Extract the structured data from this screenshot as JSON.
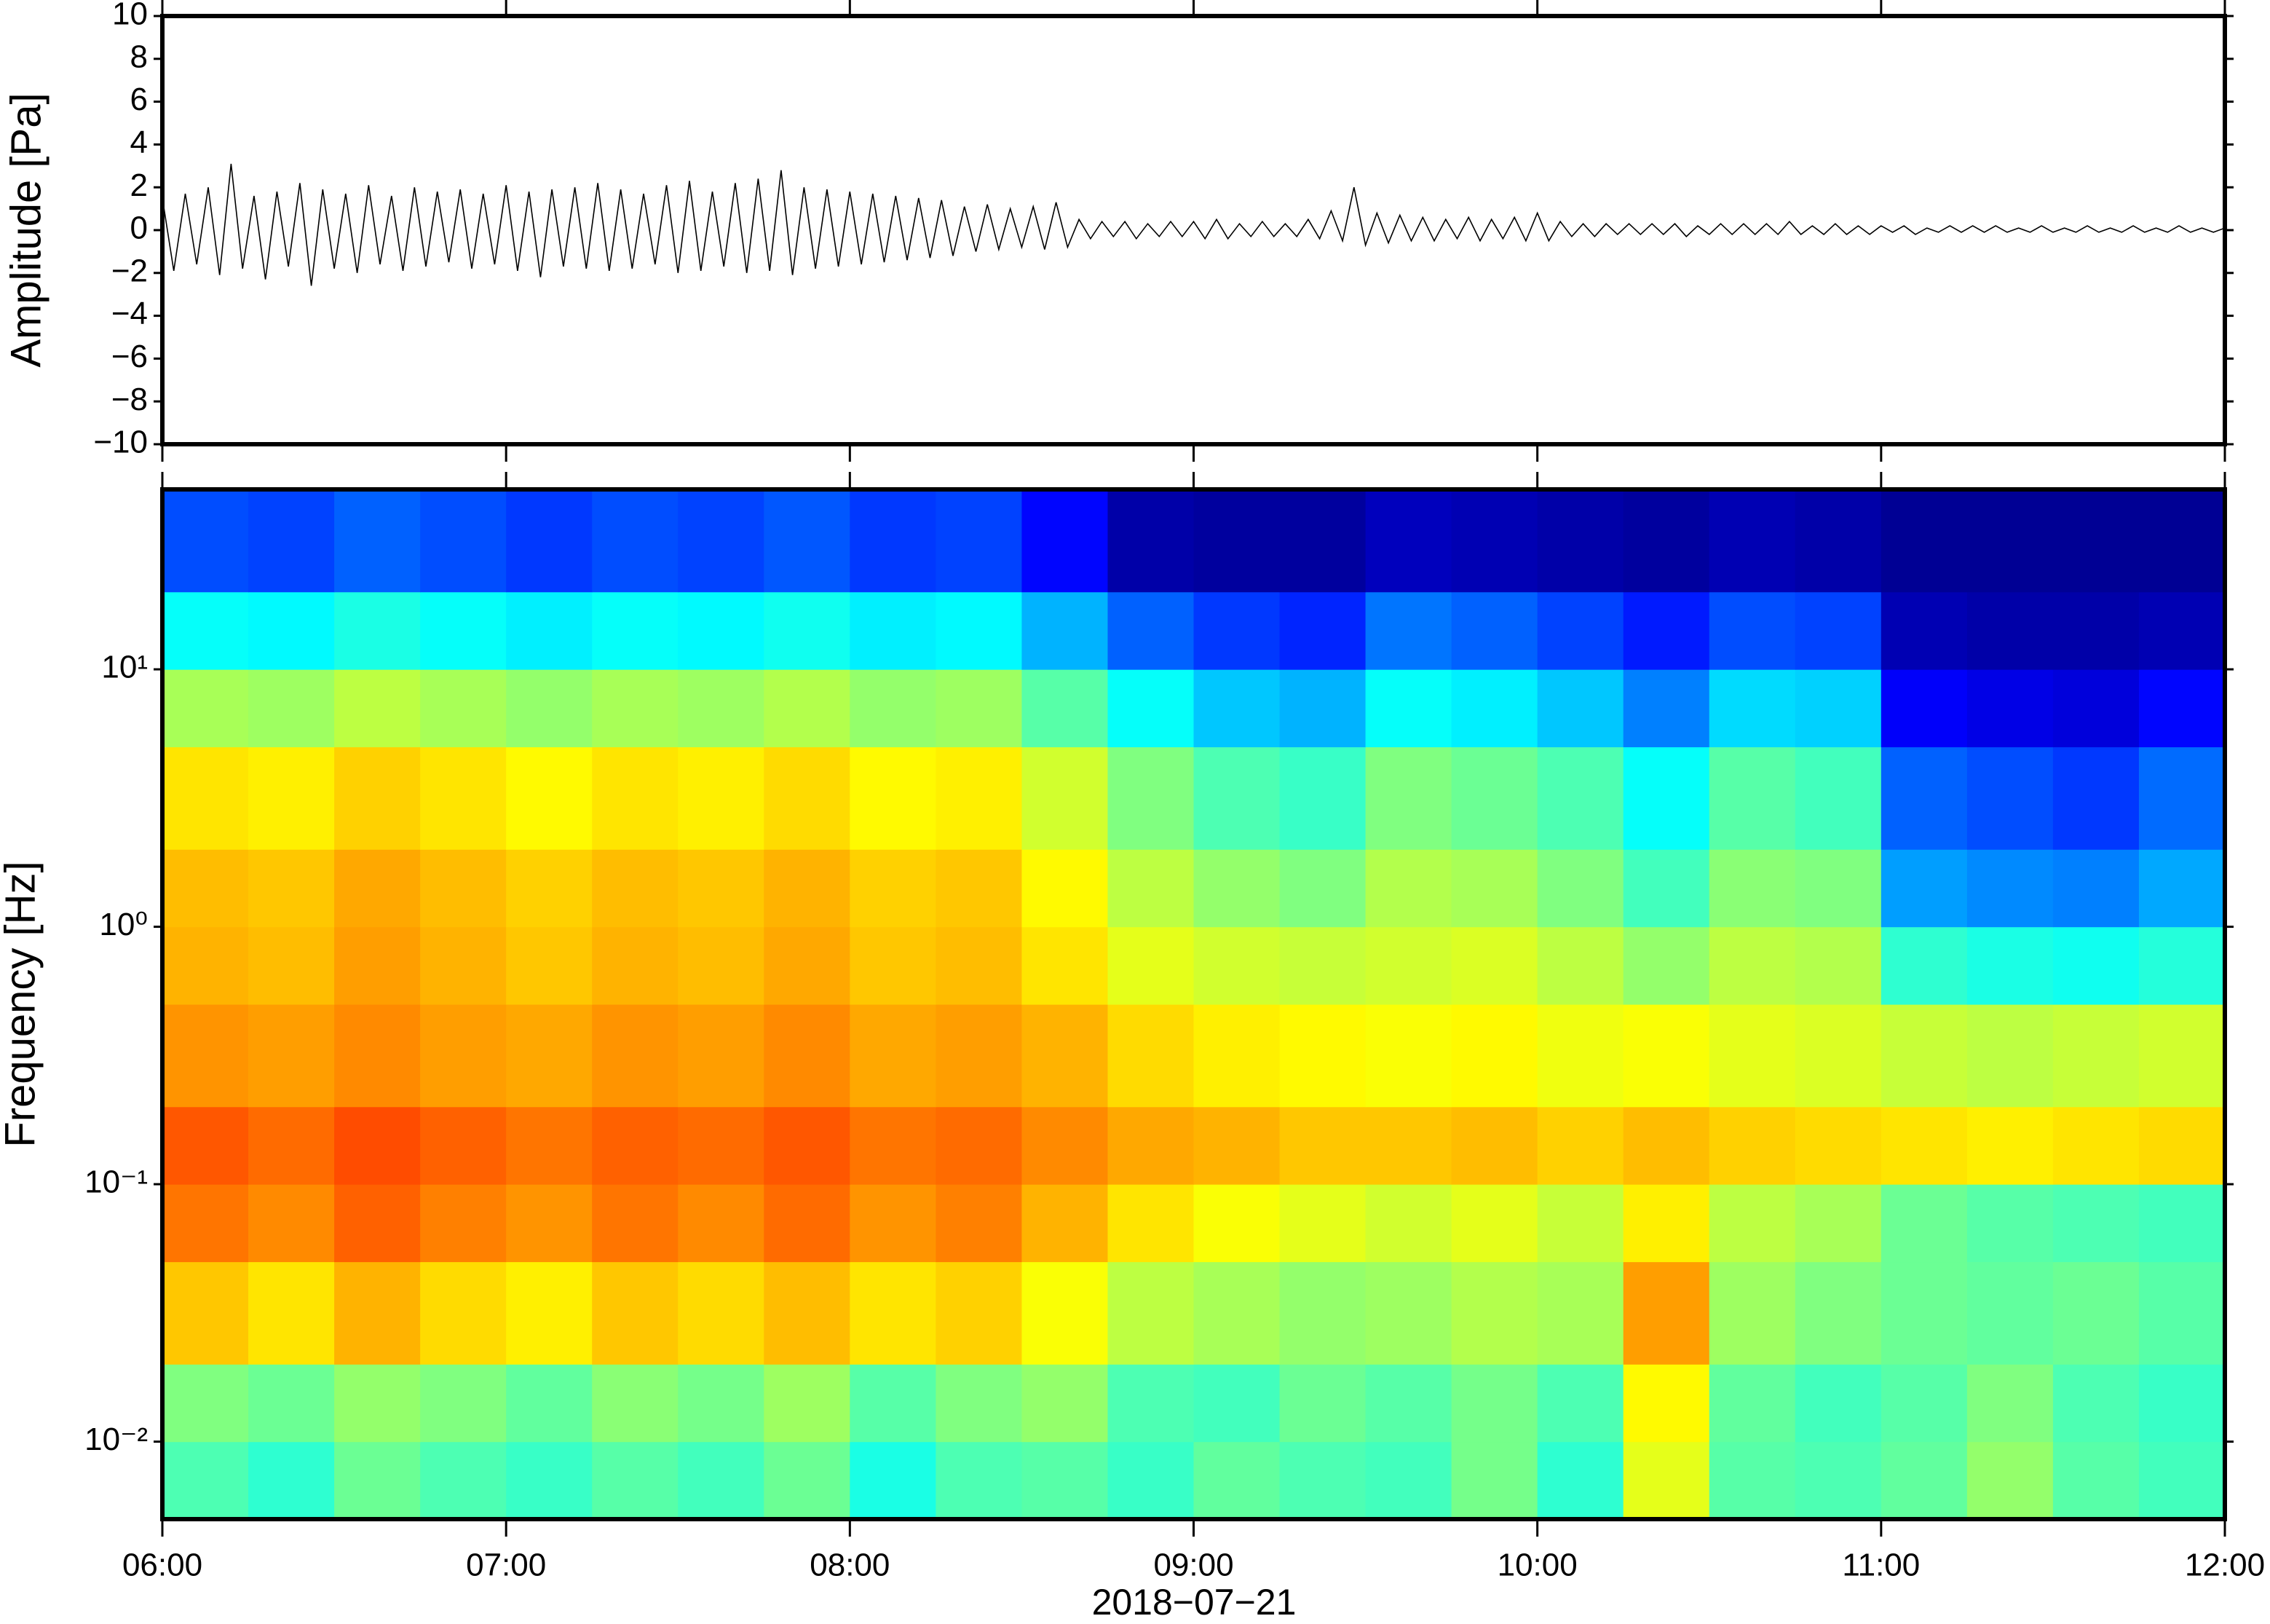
{
  "chart_data": [
    {
      "type": "line",
      "ylabel": "Amplitude [Pa]",
      "color": "#000000",
      "xlim": [
        "06:00",
        "12:00"
      ],
      "ylim": [
        -10,
        10
      ],
      "yticks": [
        10,
        8,
        6,
        4,
        2,
        0,
        {
          "value": -2,
          "label": "−2"
        },
        {
          "value": -4,
          "label": "−4"
        },
        {
          "value": -6,
          "label": "−6"
        },
        {
          "value": -8,
          "label": "−8"
        },
        {
          "value": -10,
          "label": "−10"
        }
      ],
      "x": [
        "06:00",
        "06:02",
        "06:04",
        "06:06",
        "06:08",
        "06:10",
        "06:12",
        "06:14",
        "06:16",
        "06:18",
        "06:20",
        "06:22",
        "06:24",
        "06:26",
        "06:28",
        "06:30",
        "06:32",
        "06:34",
        "06:36",
        "06:38",
        "06:40",
        "06:42",
        "06:44",
        "06:46",
        "06:48",
        "06:50",
        "06:52",
        "06:54",
        "06:56",
        "06:58",
        "07:00",
        "07:02",
        "07:04",
        "07:06",
        "07:08",
        "07:10",
        "07:12",
        "07:14",
        "07:16",
        "07:18",
        "07:20",
        "07:22",
        "07:24",
        "07:26",
        "07:28",
        "07:30",
        "07:32",
        "07:34",
        "07:36",
        "07:38",
        "07:40",
        "07:42",
        "07:44",
        "07:46",
        "07:48",
        "07:50",
        "07:52",
        "07:54",
        "07:56",
        "07:58",
        "08:00",
        "08:02",
        "08:04",
        "08:06",
        "08:08",
        "08:10",
        "08:12",
        "08:14",
        "08:16",
        "08:18",
        "08:20",
        "08:22",
        "08:24",
        "08:26",
        "08:28",
        "08:30",
        "08:32",
        "08:34",
        "08:36",
        "08:38",
        "08:40",
        "08:42",
        "08:44",
        "08:46",
        "08:48",
        "08:50",
        "08:52",
        "08:54",
        "08:56",
        "08:58",
        "09:00",
        "09:02",
        "09:04",
        "09:06",
        "09:08",
        "09:10",
        "09:12",
        "09:14",
        "09:16",
        "09:18",
        "09:20",
        "09:22",
        "09:24",
        "09:26",
        "09:28",
        "09:30",
        "09:32",
        "09:34",
        "09:36",
        "09:38",
        "09:40",
        "09:42",
        "09:44",
        "09:46",
        "09:48",
        "09:50",
        "09:52",
        "09:54",
        "09:56",
        "09:58",
        "10:00",
        "10:02",
        "10:04",
        "10:06",
        "10:08",
        "10:10",
        "10:12",
        "10:14",
        "10:16",
        "10:18",
        "10:20",
        "10:22",
        "10:24",
        "10:26",
        "10:28",
        "10:30",
        "10:32",
        "10:34",
        "10:36",
        "10:38",
        "10:40",
        "10:42",
        "10:44",
        "10:46",
        "10:48",
        "10:50",
        "10:52",
        "10:54",
        "10:56",
        "10:58",
        "11:00",
        "11:02",
        "11:04",
        "11:06",
        "11:08",
        "11:10",
        "11:12",
        "11:14",
        "11:16",
        "11:18",
        "11:20",
        "11:22",
        "11:24",
        "11:26",
        "11:28",
        "11:30",
        "11:32",
        "11:34",
        "11:36",
        "11:38",
        "11:40",
        "11:42",
        "11:44",
        "11:46",
        "11:48",
        "11:50",
        "11:52",
        "11:54",
        "11:56",
        "11:58",
        "12:00"
      ],
      "values": [
        1.5,
        -1.9,
        1.7,
        -1.6,
        2.0,
        -2.1,
        3.1,
        -1.8,
        1.6,
        -2.3,
        1.8,
        -1.7,
        2.2,
        -2.6,
        1.9,
        -1.8,
        1.7,
        -2.0,
        2.1,
        -1.6,
        1.6,
        -1.9,
        2.0,
        -1.7,
        1.8,
        -1.5,
        1.9,
        -1.8,
        1.7,
        -1.6,
        2.1,
        -1.9,
        1.8,
        -2.2,
        1.9,
        -1.7,
        2.0,
        -1.8,
        2.2,
        -1.9,
        1.9,
        -1.8,
        1.7,
        -1.6,
        2.1,
        -2.0,
        2.3,
        -1.9,
        1.8,
        -1.7,
        2.2,
        -2.0,
        2.4,
        -1.9,
        2.8,
        -2.1,
        2.0,
        -1.8,
        1.9,
        -1.7,
        1.8,
        -1.6,
        1.7,
        -1.5,
        1.6,
        -1.4,
        1.5,
        -1.3,
        1.4,
        -1.2,
        1.1,
        -1.0,
        1.2,
        -0.9,
        1.0,
        -0.8,
        1.1,
        -0.9,
        1.3,
        -0.8,
        0.5,
        -0.4,
        0.4,
        -0.3,
        0.4,
        -0.4,
        0.3,
        -0.3,
        0.4,
        -0.3,
        0.4,
        -0.4,
        0.5,
        -0.4,
        0.3,
        -0.3,
        0.4,
        -0.3,
        0.3,
        -0.3,
        0.5,
        -0.4,
        0.9,
        -0.5,
        2.0,
        -0.7,
        0.8,
        -0.6,
        0.7,
        -0.5,
        0.6,
        -0.5,
        0.5,
        -0.4,
        0.6,
        -0.5,
        0.5,
        -0.4,
        0.6,
        -0.5,
        0.8,
        -0.5,
        0.4,
        -0.3,
        0.3,
        -0.3,
        0.3,
        -0.2,
        0.3,
        -0.2,
        0.3,
        -0.2,
        0.3,
        -0.3,
        0.2,
        -0.2,
        0.3,
        -0.2,
        0.3,
        -0.2,
        0.3,
        -0.2,
        0.4,
        -0.2,
        0.2,
        -0.2,
        0.3,
        -0.2,
        0.2,
        -0.2,
        0.2,
        -0.1,
        0.2,
        -0.2,
        0.1,
        -0.1,
        0.2,
        -0.1,
        0.2,
        -0.1,
        0.2,
        -0.1,
        0.1,
        -0.1,
        0.2,
        -0.1,
        0.1,
        -0.1,
        0.2,
        -0.1,
        0.1,
        -0.1,
        0.2,
        -0.1,
        0.1,
        -0.1,
        0.2,
        -0.1,
        0.1,
        -0.1,
        0.1
      ]
    },
    {
      "type": "heatmap",
      "ylabel": "Frequency [Hz]",
      "xlabel": "2018−07−21",
      "xlim": [
        "06:00",
        "12:00"
      ],
      "ylim": [
        0.005,
        50
      ],
      "yscale": "log",
      "zlim": [
        0,
        10
      ],
      "xticks": [
        "06:00",
        "07:00",
        "08:00",
        "09:00",
        "10:00",
        "11:00",
        "12:00"
      ],
      "yticks": [
        {
          "value": 10,
          "label": "10¹"
        },
        {
          "value": 1,
          "label": "10⁰"
        },
        {
          "value": 0.1,
          "label": "10⁻¹"
        },
        {
          "value": 0.01,
          "label": "10⁻²"
        }
      ],
      "xbins": [
        "06:00",
        "06:15",
        "06:30",
        "06:45",
        "07:00",
        "07:15",
        "07:30",
        "07:45",
        "08:00",
        "08:15",
        "08:30",
        "08:45",
        "09:00",
        "09:15",
        "09:30",
        "09:45",
        "10:00",
        "10:15",
        "10:30",
        "10:45",
        "11:00",
        "11:15",
        "11:30",
        "11:45",
        "12:00"
      ],
      "ybins": [
        0.005,
        0.01,
        0.02,
        0.05,
        0.1,
        0.2,
        0.5,
        1,
        2,
        5,
        10,
        20,
        50
      ],
      "z": [
        [
          4.5,
          4.2,
          4.8,
          4.5,
          4.3,
          4.6,
          4.4,
          4.8,
          4.0,
          4.5,
          4.6,
          4.3,
          4.7,
          4.5,
          4.4,
          4.9,
          4.2,
          6.0,
          4.6,
          4.5,
          4.7,
          5.2,
          4.6,
          4.4
        ],
        [
          5.0,
          4.8,
          5.2,
          5.0,
          4.7,
          5.1,
          4.9,
          5.3,
          4.6,
          5.0,
          5.2,
          4.5,
          4.4,
          4.8,
          4.6,
          4.9,
          4.5,
          6.3,
          4.7,
          4.4,
          4.6,
          5.0,
          4.5,
          4.3
        ],
        [
          6.8,
          6.5,
          7.0,
          6.6,
          6.4,
          6.8,
          6.6,
          6.9,
          6.5,
          6.7,
          6.2,
          5.6,
          5.4,
          5.2,
          5.3,
          5.5,
          5.4,
          7.2,
          5.3,
          5.0,
          4.8,
          4.7,
          4.8,
          4.6
        ],
        [
          7.6,
          7.4,
          7.8,
          7.5,
          7.3,
          7.6,
          7.4,
          7.7,
          7.3,
          7.5,
          7.0,
          6.5,
          6.2,
          6.0,
          5.8,
          6.0,
          5.7,
          6.4,
          5.6,
          5.4,
          4.8,
          4.6,
          4.5,
          4.4
        ],
        [
          7.9,
          7.7,
          8.0,
          7.8,
          7.6,
          7.8,
          7.7,
          7.9,
          7.6,
          7.7,
          7.4,
          7.1,
          7.0,
          6.8,
          6.8,
          6.9,
          6.7,
          6.9,
          6.7,
          6.6,
          6.5,
          6.4,
          6.5,
          6.6
        ],
        [
          7.3,
          7.2,
          7.4,
          7.2,
          7.1,
          7.3,
          7.2,
          7.4,
          7.1,
          7.2,
          7.0,
          6.6,
          6.4,
          6.3,
          6.2,
          6.3,
          6.1,
          6.2,
          6.0,
          5.9,
          5.7,
          5.6,
          5.7,
          5.8
        ],
        [
          7.0,
          6.9,
          7.2,
          7.0,
          6.8,
          7.0,
          6.9,
          7.1,
          6.8,
          6.9,
          6.5,
          6.0,
          5.8,
          5.7,
          5.8,
          5.9,
          5.6,
          5.2,
          5.6,
          5.5,
          4.2,
          4.0,
          3.9,
          4.1
        ],
        [
          6.9,
          6.8,
          7.1,
          6.9,
          6.7,
          6.9,
          6.8,
          7.0,
          6.7,
          6.8,
          6.3,
          5.6,
          5.2,
          5.0,
          5.5,
          5.4,
          5.0,
          4.4,
          5.1,
          5.0,
          2.8,
          2.6,
          2.5,
          2.9
        ],
        [
          6.5,
          6.4,
          6.7,
          6.5,
          6.3,
          6.5,
          6.4,
          6.6,
          6.3,
          6.4,
          5.8,
          5.0,
          4.5,
          4.3,
          5.0,
          4.8,
          4.5,
          3.8,
          4.6,
          4.4,
          2.2,
          2.0,
          1.8,
          2.3
        ],
        [
          5.4,
          5.3,
          5.6,
          5.4,
          5.2,
          5.4,
          5.3,
          5.5,
          5.2,
          5.3,
          4.6,
          3.8,
          3.2,
          3.0,
          3.8,
          3.6,
          3.2,
          2.5,
          3.4,
          3.3,
          1.2,
          1.0,
          0.9,
          1.3
        ],
        [
          3.8,
          3.7,
          4.0,
          3.8,
          3.6,
          3.8,
          3.7,
          3.9,
          3.6,
          3.7,
          3.0,
          2.2,
          1.8,
          1.6,
          2.4,
          2.2,
          1.9,
          1.5,
          2.0,
          1.9,
          0.5,
          0.4,
          0.4,
          0.5
        ],
        [
          2.0,
          1.9,
          2.2,
          2.0,
          1.8,
          2.0,
          1.9,
          2.1,
          1.8,
          1.9,
          1.3,
          0.4,
          0.3,
          0.3,
          0.6,
          0.5,
          0.4,
          0.3,
          0.5,
          0.4,
          0.2,
          0.2,
          0.2,
          0.2
        ]
      ]
    }
  ]
}
